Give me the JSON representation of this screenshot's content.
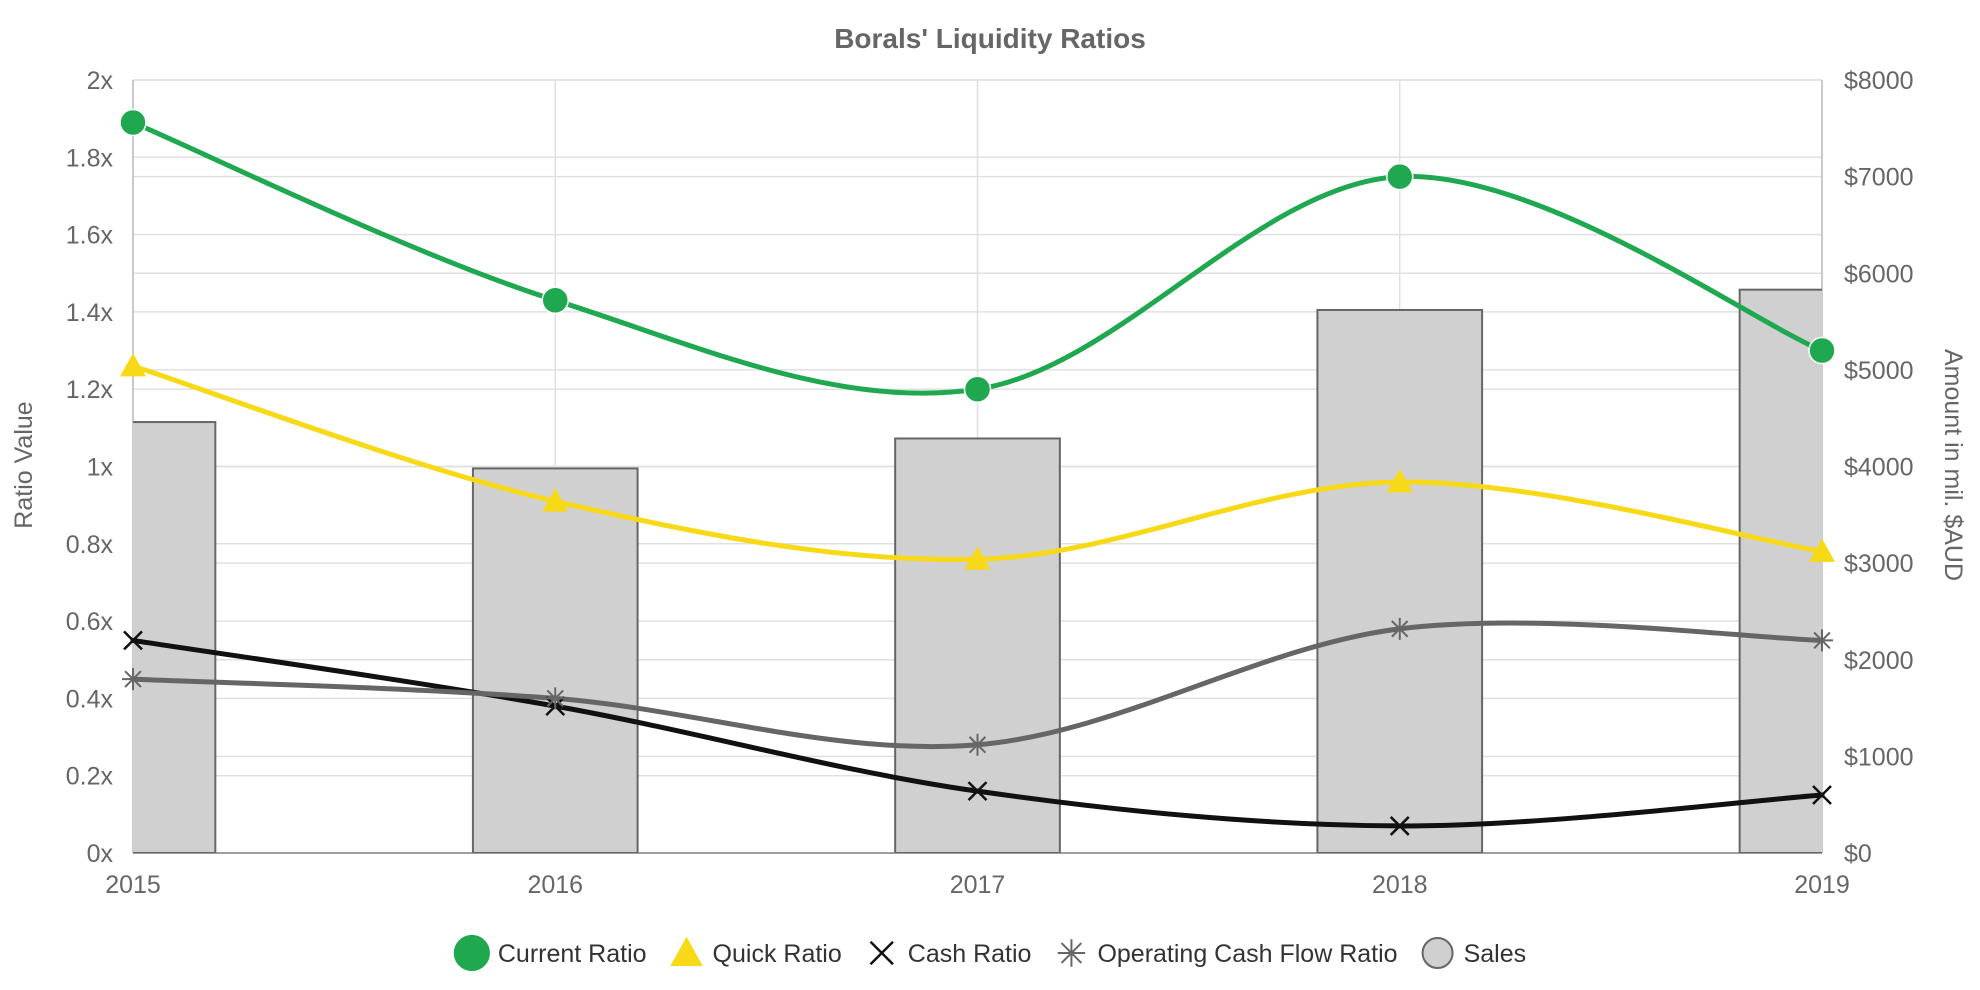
{
  "chart_data": {
    "type": "line",
    "title": "Borals' Liquidity Ratios",
    "xlabel": "",
    "ylabel": "Ratio Value",
    "y2label": "Amount in mil. $AUD",
    "categories": [
      "2015",
      "2016",
      "2017",
      "2018",
      "2019"
    ],
    "ylim": [
      0,
      2
    ],
    "y2lim": [
      0,
      8000
    ],
    "yticks": [
      "0x",
      "0.2x",
      "0.4x",
      "0.6x",
      "0.8x",
      "1x",
      "1.2x",
      "1.4x",
      "1.6x",
      "1.8x",
      "2x"
    ],
    "y2ticks": [
      "$0",
      "$1000",
      "$2000",
      "$3000",
      "$4000",
      "$5000",
      "$6000",
      "$7000",
      "$8000"
    ],
    "grid": true,
    "legend_position": "bottom",
    "series": [
      {
        "name": "Current Ratio",
        "axis": "left",
        "kind": "line",
        "marker": "circle",
        "color": "#1fa84f",
        "values": [
          1.89,
          1.43,
          1.2,
          1.75,
          1.3
        ]
      },
      {
        "name": "Quick Ratio",
        "axis": "left",
        "kind": "line",
        "marker": "triangle",
        "color": "#f7d917",
        "values": [
          1.26,
          0.91,
          0.76,
          0.96,
          0.78
        ]
      },
      {
        "name": "Cash Ratio",
        "axis": "left",
        "kind": "line",
        "marker": "x",
        "color": "#111111",
        "values": [
          0.55,
          0.38,
          0.16,
          0.07,
          0.15
        ]
      },
      {
        "name": "Operating Cash Flow Ratio",
        "axis": "left",
        "kind": "line",
        "marker": "asterisk",
        "color": "#666666",
        "values": [
          0.45,
          0.4,
          0.28,
          0.58,
          0.55
        ]
      },
      {
        "name": "Sales",
        "axis": "right",
        "kind": "bar",
        "marker": "circle",
        "color": "#d0d0d0",
        "values": [
          4460,
          3980,
          4290,
          5620,
          5830
        ]
      }
    ]
  }
}
